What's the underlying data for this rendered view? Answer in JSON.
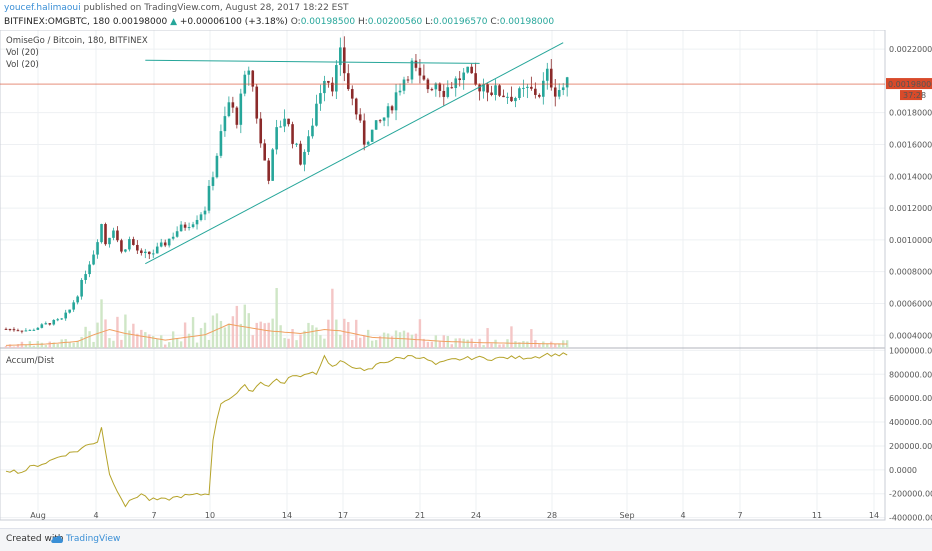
{
  "header": {
    "user": "youcef.halimaoui",
    "published_text": "published on TradingView.com, August 28, 2017 18:22 EST",
    "symbol_line": "BITFINEX:OMGBTC, 180",
    "last": "0.00198000",
    "change_arrow": "▲",
    "change": "+0.00006100 (+3.18%)",
    "o_label": "O:",
    "o": "0.00198500",
    "h_label": "H:",
    "h": "0.00200560",
    "l_label": "L:",
    "l": "0.00196570",
    "c_label": "C:",
    "c": "0.00198000"
  },
  "chart_data": {
    "type": "candlestick",
    "title": "OmiseGo / Bitcoin, 180, BITFINEX",
    "indicators": [
      "Vol (20)",
      "Vol (20)"
    ],
    "lower_panel_title": "Accum/Dist",
    "x_ticks": [
      "Aug",
      "4",
      "7",
      "10",
      "14",
      "17",
      "21",
      "24",
      "28",
      "Sep",
      "4",
      "7",
      "11",
      "14"
    ],
    "price_ticks": [
      "0.00220000",
      "0.00180000",
      "0.00160000",
      "0.00140000",
      "0.00120000",
      "0.00100000",
      "0.00080000",
      "0.00060000",
      "0.00040000"
    ],
    "price_ylim": [
      0.00032,
      0.00232
    ],
    "last_price_label": "0.00198000",
    "countdown_label": "37:28",
    "ad_ticks": [
      "1000000.0000",
      "800000.0000",
      "600000.0000",
      "400000.0000",
      "200000.0000",
      "0.0000",
      "-200000.0000",
      "-400000.0000"
    ],
    "ad_ylim": [
      -420000,
      1020000
    ],
    "price_close_anchors": [
      [
        0,
        0.00044
      ],
      [
        6,
        0.00043
      ],
      [
        10,
        0.00047
      ],
      [
        14,
        0.0005
      ],
      [
        16,
        0.00056
      ],
      [
        18,
        0.00066
      ],
      [
        20,
        0.0008
      ],
      [
        22,
        0.00092
      ],
      [
        24,
        0.0011
      ],
      [
        25,
        0.00098
      ],
      [
        27,
        0.00108
      ],
      [
        29,
        0.00092
      ],
      [
        31,
        0.001
      ],
      [
        34,
        0.0009
      ],
      [
        37,
        0.00092
      ],
      [
        40,
        0.00098
      ],
      [
        43,
        0.00106
      ],
      [
        47,
        0.00112
      ],
      [
        50,
        0.0012
      ],
      [
        52,
        0.00142
      ],
      [
        54,
        0.00166
      ],
      [
        56,
        0.00186
      ],
      [
        58,
        0.00176
      ],
      [
        60,
        0.002
      ],
      [
        61,
        0.00208
      ],
      [
        62,
        0.00196
      ],
      [
        64,
        0.0016
      ],
      [
        66,
        0.0014
      ],
      [
        68,
        0.00168
      ],
      [
        70,
        0.00178
      ],
      [
        72,
        0.00164
      ],
      [
        74,
        0.0015
      ],
      [
        76,
        0.00162
      ],
      [
        78,
        0.00186
      ],
      [
        80,
        0.00204
      ],
      [
        82,
        0.00198
      ],
      [
        84,
        0.00216
      ],
      [
        86,
        0.00196
      ],
      [
        88,
        0.0018
      ],
      [
        90,
        0.00162
      ],
      [
        92,
        0.00168
      ],
      [
        94,
        0.00174
      ],
      [
        96,
        0.0018
      ],
      [
        98,
        0.00192
      ],
      [
        100,
        0.00202
      ],
      [
        102,
        0.0021
      ],
      [
        104,
        0.002
      ],
      [
        106,
        0.00196
      ],
      [
        108,
        0.002
      ],
      [
        110,
        0.00194
      ],
      [
        112,
        0.00198
      ],
      [
        114,
        0.00202
      ],
      [
        116,
        0.00204
      ],
      [
        118,
        0.00196
      ],
      [
        120,
        0.00198
      ],
      [
        122,
        0.00194
      ],
      [
        125,
        0.00192
      ],
      [
        128,
        0.0019
      ],
      [
        131,
        0.00194
      ],
      [
        134,
        0.00192
      ],
      [
        136,
        0.00204
      ],
      [
        138,
        0.00194
      ],
      [
        140,
        0.00196
      ],
      [
        141,
        0.00198
      ]
    ],
    "volume_ma_anchors": [
      [
        0,
        0.02
      ],
      [
        10,
        0.03
      ],
      [
        18,
        0.05
      ],
      [
        22,
        0.1
      ],
      [
        26,
        0.14
      ],
      [
        30,
        0.11
      ],
      [
        40,
        0.06
      ],
      [
        50,
        0.1
      ],
      [
        56,
        0.18
      ],
      [
        60,
        0.16
      ],
      [
        66,
        0.13
      ],
      [
        74,
        0.11
      ],
      [
        80,
        0.14
      ],
      [
        84,
        0.13
      ],
      [
        92,
        0.08
      ],
      [
        100,
        0.07
      ],
      [
        110,
        0.05
      ],
      [
        120,
        0.04
      ],
      [
        141,
        0.03
      ]
    ],
    "ad_anchors": [
      [
        0,
        0
      ],
      [
        4,
        -20000
      ],
      [
        6,
        20000
      ],
      [
        10,
        60000
      ],
      [
        14,
        120000
      ],
      [
        18,
        160000
      ],
      [
        20,
        200000
      ],
      [
        23,
        240000
      ],
      [
        24,
        360000
      ],
      [
        26,
        -40000
      ],
      [
        28,
        -170000
      ],
      [
        30,
        -300000
      ],
      [
        32,
        -240000
      ],
      [
        34,
        -200000
      ],
      [
        36,
        -250000
      ],
      [
        40,
        -250000
      ],
      [
        44,
        -220000
      ],
      [
        48,
        -210000
      ],
      [
        51,
        -200000
      ],
      [
        52,
        260000
      ],
      [
        54,
        560000
      ],
      [
        56,
        600000
      ],
      [
        58,
        640000
      ],
      [
        60,
        700000
      ],
      [
        62,
        660000
      ],
      [
        64,
        740000
      ],
      [
        66,
        700000
      ],
      [
        68,
        760000
      ],
      [
        70,
        720000
      ],
      [
        72,
        800000
      ],
      [
        74,
        770000
      ],
      [
        76,
        820000
      ],
      [
        78,
        810000
      ],
      [
        80,
        950000
      ],
      [
        82,
        860000
      ],
      [
        84,
        900000
      ],
      [
        86,
        880000
      ],
      [
        88,
        860000
      ],
      [
        90,
        820000
      ],
      [
        92,
        850000
      ],
      [
        94,
        900000
      ],
      [
        96,
        910000
      ],
      [
        98,
        930000
      ],
      [
        100,
        940000
      ],
      [
        102,
        960000
      ],
      [
        104,
        940000
      ],
      [
        106,
        920000
      ],
      [
        108,
        880000
      ],
      [
        110,
        900000
      ],
      [
        112,
        920000
      ],
      [
        115,
        930000
      ],
      [
        118,
        940000
      ],
      [
        122,
        930000
      ],
      [
        126,
        940000
      ],
      [
        130,
        940000
      ],
      [
        134,
        950000
      ],
      [
        136,
        970000
      ],
      [
        138,
        960000
      ],
      [
        140,
        975000
      ],
      [
        141,
        970000
      ]
    ],
    "trendlines": [
      {
        "name": "resistance",
        "from": [
          35,
          0.00213
        ],
        "to": [
          119,
          0.00211
        ],
        "color": "#26a69a"
      },
      {
        "name": "support",
        "from": [
          35,
          0.00085
        ],
        "to": [
          140,
          0.00224
        ],
        "color": "#26a69a"
      }
    ],
    "grid": true,
    "colors": {
      "up": "#26a69a",
      "down": "#8b2a2a",
      "volume_up": "#cfe6c6",
      "volume_down": "#f4c6c6",
      "volume_ma": "#f0a060",
      "ad_line": "#b5a32a",
      "price_line": "#d84a2a",
      "trendline": "#26a69a"
    }
  },
  "footer": {
    "created_with": "Created with",
    "brand": "TradingView"
  }
}
